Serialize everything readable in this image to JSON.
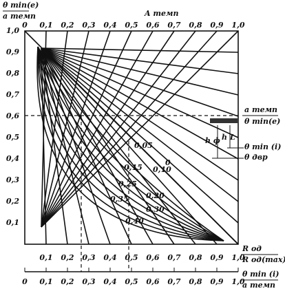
{
  "header": {
    "y_label_top": "θ min(e)",
    "y_label_bottom": "a темп",
    "top_title": "A темп"
  },
  "top_axis": {
    "labels": [
      "0",
      "0,1",
      "0,2",
      "0,3",
      "0,4",
      "0,5",
      "0,6",
      "0,7",
      "0,8",
      "0,9",
      "1,0"
    ]
  },
  "left_axis": {
    "labels": [
      "0,1",
      "0,2",
      "0,3",
      "0,4",
      "0,5",
      "0,6",
      "0,7",
      "0,8",
      "0,9",
      "1,0"
    ]
  },
  "bottom_axis": {
    "labels": [
      "0,1",
      "0,2",
      "0,3",
      "0,4",
      "0,5",
      "0,6",
      "0,7",
      "0,8",
      "0,9",
      "1,0"
    ],
    "label_top": "R од",
    "label_bottom": "R од(max)"
  },
  "lower_scale": {
    "labels": [
      "0",
      "0,1",
      "0,2",
      "0,3",
      "0,4",
      "0,5",
      "0,6",
      "0,7",
      "0,8",
      "0,9",
      "1,0"
    ],
    "label_top": "θ min (i)",
    "label_bottom": "a темп"
  },
  "inset": {
    "ratio_top": "a темп",
    "ratio_bottom": "θ min(e)",
    "h_f": "h ф",
    "h_l": "h L",
    "theta_i": "θ min (i)",
    "theta_dvr": "θ двр"
  },
  "curve_labels": [
    "0,05",
    "0",
    "0,10",
    "0,15",
    "0,20",
    "0,25",
    "0,30",
    "0,35",
    "0,40"
  ]
}
